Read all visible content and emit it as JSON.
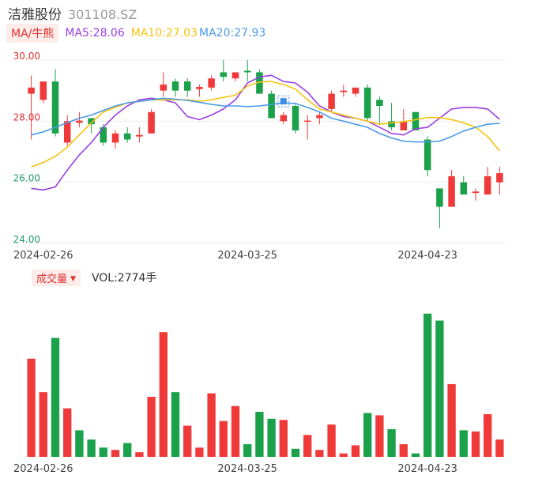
{
  "header": {
    "name": "洁雅股份",
    "code": "301108.SZ"
  },
  "ma_legend": {
    "toggle_label": "MA/牛熊",
    "ma5": "MA5:28.06",
    "ma10": "MA10:27.03",
    "ma20": "MA20:27.93"
  },
  "volume_legend": {
    "toggle_label": "成交量",
    "vol": "VOL:2774手"
  },
  "colors": {
    "up": "#f03a3a",
    "down": "#1aa14a",
    "ma5": "#9b3fe0",
    "ma10": "#f5c211",
    "ma20": "#4a9ae6",
    "grid": "#eeeeee",
    "axis_red": "#e0302e",
    "axis_green": "#1a9b6a"
  },
  "chart_data": [
    {
      "type": "candlestick",
      "title": "洁雅股份 301108.SZ",
      "ylim": [
        24.0,
        30.0
      ],
      "yticks": [
        "30.00",
        "28.00",
        "26.00",
        "24.00"
      ],
      "xtick_labels": [
        "2024-02-26",
        "2024-03-25",
        "2024-04-23"
      ],
      "xtick_index": [
        1,
        18,
        33
      ],
      "candles": [
        {
          "o": 28.9,
          "c": 29.1,
          "h": 29.5,
          "l": 27.4
        },
        {
          "o": 28.7,
          "c": 29.3,
          "h": 29.3,
          "l": 28.6
        },
        {
          "o": 29.3,
          "c": 27.6,
          "h": 29.7,
          "l": 27.5
        },
        {
          "o": 27.3,
          "c": 28.0,
          "h": 28.2,
          "l": 27.2
        },
        {
          "o": 27.95,
          "c": 28.02,
          "h": 28.3,
          "l": 27.8
        },
        {
          "o": 28.1,
          "c": 27.9,
          "h": 28.1,
          "l": 27.6
        },
        {
          "o": 27.8,
          "c": 27.3,
          "h": 27.9,
          "l": 27.2
        },
        {
          "o": 27.3,
          "c": 27.6,
          "h": 27.7,
          "l": 27.1
        },
        {
          "o": 27.6,
          "c": 27.4,
          "h": 27.8,
          "l": 27.3
        },
        {
          "o": 27.5,
          "c": 27.55,
          "h": 27.8,
          "l": 27.3
        },
        {
          "o": 27.6,
          "c": 28.3,
          "h": 28.4,
          "l": 27.6
        },
        {
          "o": 29.0,
          "c": 29.2,
          "h": 29.6,
          "l": 28.8
        },
        {
          "o": 29.3,
          "c": 29.0,
          "h": 29.4,
          "l": 28.8
        },
        {
          "o": 29.3,
          "c": 29.0,
          "h": 29.4,
          "l": 28.8
        },
        {
          "o": 29.05,
          "c": 29.12,
          "h": 29.2,
          "l": 28.8
        },
        {
          "o": 29.1,
          "c": 29.4,
          "h": 29.5,
          "l": 29.0
        },
        {
          "o": 29.6,
          "c": 29.45,
          "h": 30.0,
          "l": 29.3
        },
        {
          "o": 29.4,
          "c": 29.6,
          "h": 29.6,
          "l": 29.3
        },
        {
          "o": 29.65,
          "c": 29.6,
          "h": 30.0,
          "l": 29.3
        },
        {
          "o": 29.6,
          "c": 28.9,
          "h": 29.7,
          "l": 28.9
        },
        {
          "o": 28.9,
          "c": 28.1,
          "h": 29.0,
          "l": 28.1
        },
        {
          "o": 28.0,
          "c": 28.2,
          "h": 28.3,
          "l": 27.9
        },
        {
          "o": 28.5,
          "c": 27.7,
          "h": 28.6,
          "l": 27.6
        },
        {
          "o": 27.98,
          "c": 28.02,
          "h": 28.2,
          "l": 27.4
        },
        {
          "o": 28.1,
          "c": 28.2,
          "h": 28.3,
          "l": 27.9
        },
        {
          "o": 28.4,
          "c": 28.9,
          "h": 29.0,
          "l": 28.3
        },
        {
          "o": 28.95,
          "c": 29.0,
          "h": 29.2,
          "l": 28.8
        },
        {
          "o": 28.9,
          "c": 29.1,
          "h": 29.1,
          "l": 28.8
        },
        {
          "o": 29.1,
          "c": 28.1,
          "h": 29.2,
          "l": 28.0
        },
        {
          "o": 28.7,
          "c": 28.5,
          "h": 28.8,
          "l": 27.9
        },
        {
          "o": 28.0,
          "c": 27.8,
          "h": 28.6,
          "l": 27.7
        },
        {
          "o": 27.7,
          "c": 28.0,
          "h": 28.4,
          "l": 27.7
        },
        {
          "o": 28.3,
          "c": 27.7,
          "h": 28.3,
          "l": 27.7
        },
        {
          "o": 27.4,
          "c": 26.4,
          "h": 27.5,
          "l": 26.2
        },
        {
          "o": 25.8,
          "c": 25.2,
          "h": 25.8,
          "l": 24.5
        },
        {
          "o": 25.2,
          "c": 26.2,
          "h": 26.4,
          "l": 25.2
        },
        {
          "o": 26.0,
          "c": 25.6,
          "h": 26.2,
          "l": 25.6
        },
        {
          "o": 25.65,
          "c": 25.7,
          "h": 25.8,
          "l": 25.4
        },
        {
          "o": 25.6,
          "c": 26.2,
          "h": 26.5,
          "l": 25.6
        },
        {
          "o": 26.0,
          "c": 26.3,
          "h": 26.5,
          "l": 25.6
        }
      ],
      "ma5": [
        25.8,
        25.75,
        25.85,
        26.4,
        26.9,
        27.3,
        27.8,
        28.2,
        28.5,
        28.7,
        28.75,
        28.7,
        28.6,
        28.15,
        28.05,
        28.2,
        28.4,
        28.7,
        29.25,
        29.45,
        29.5,
        29.3,
        29.25,
        28.95,
        28.5,
        28.3,
        28.15,
        28.1,
        28.0,
        27.8,
        27.6,
        27.55,
        27.75,
        27.8,
        28.1,
        28.4,
        28.45,
        28.45,
        28.4,
        28.06
      ],
      "ma10": [
        26.5,
        26.65,
        26.85,
        27.15,
        27.55,
        27.95,
        28.3,
        28.45,
        28.6,
        28.65,
        28.7,
        28.7,
        28.7,
        28.7,
        28.65,
        28.7,
        28.78,
        28.85,
        29.15,
        29.28,
        29.3,
        29.2,
        29.05,
        28.7,
        28.4,
        28.3,
        28.2,
        28.1,
        28.0,
        27.9,
        27.95,
        27.98,
        28.05,
        28.12,
        28.12,
        28.05,
        27.95,
        27.8,
        27.5,
        27.03
      ],
      "ma20": [
        27.55,
        27.65,
        27.8,
        27.95,
        28.1,
        28.2,
        28.35,
        28.5,
        28.6,
        28.65,
        28.7,
        28.75,
        28.72,
        28.68,
        28.62,
        28.55,
        28.5,
        28.5,
        28.48,
        28.5,
        28.55,
        28.6,
        28.58,
        28.45,
        28.3,
        28.1,
        28.0,
        27.9,
        27.8,
        27.6,
        27.45,
        27.35,
        27.32,
        27.32,
        27.35,
        27.5,
        27.68,
        27.8,
        27.9,
        27.93
      ]
    },
    {
      "type": "bar",
      "title": "成交量",
      "values": [
        85,
        56,
        103,
        42,
        23,
        15,
        8,
        6,
        12,
        4,
        52,
        108,
        56,
        27,
        8,
        55,
        31,
        44,
        11,
        39,
        33,
        32,
        7,
        19,
        6,
        28,
        3,
        10,
        38,
        36,
        24,
        11,
        3,
        124,
        118,
        63,
        23,
        22,
        37,
        15
      ],
      "up_down": [
        "up",
        "up",
        "down",
        "up",
        "down",
        "down",
        "down",
        "up",
        "down",
        "up",
        "up",
        "up",
        "down",
        "up",
        "up",
        "up",
        "up",
        "up",
        "down",
        "down",
        "down",
        "up",
        "down",
        "up",
        "up",
        "up",
        "up",
        "up",
        "down",
        "up",
        "down",
        "up",
        "down",
        "down",
        "down",
        "up",
        "down",
        "up",
        "up",
        "up"
      ]
    }
  ]
}
